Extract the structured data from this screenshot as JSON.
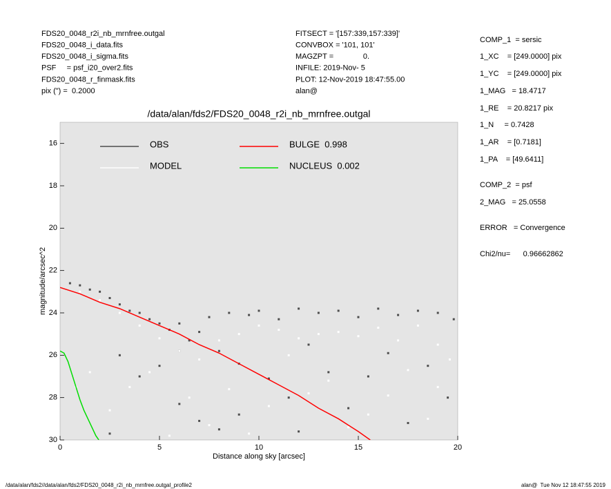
{
  "header": {
    "left": [
      "FDS20_0048_r2i_nb_mrnfree.outgal",
      "FDS20_0048_i_data.fits",
      "FDS20_0048_i_sigma.fits",
      "PSF     = psf_i20_over2.fits",
      "FDS20_0048_r_finmask.fits",
      "pix (\") =  0.2000"
    ],
    "middle": [
      "FITSECT = '[157:339,157:339]'",
      "CONVBOX = '101, 101'",
      "MAGZPT =              0.",
      "INFILE: 2019-Nov- 5",
      "PLOT: 12-Nov-2019 18:47:55.00",
      "alan@"
    ],
    "right": [
      "COMP_1  = sersic",
      "1_XC    = [249.0000] pix",
      "1_YC    = [249.0000] pix",
      "1_MAG   = 18.4717",
      "1_RE    = 20.8217 pix",
      "1_N     = 0.7428",
      "1_AR    = [0.7181]",
      "1_PA    = [49.6411]",
      "COMP_2  = psf",
      "2_MAG   = 25.0558",
      "ERROR   = Convergence",
      "Chi2/nu=      0.96662862"
    ]
  },
  "footer": {
    "left": "/data/alan/fds2//data/alan/fds2/FDS20_0048_r2i_nb_mrnfree.outgal_profile2",
    "right": "alan@  Tue Nov 12 18:47:55 2019"
  },
  "chart_data": {
    "type": "scatter",
    "title": "/data/alan/fds2/FDS20_0048_r2i_nb_mrnfree.outgal",
    "x_label": "Distance along sky [arcsec]",
    "y_label": "magnitude/arcsec^2",
    "xlim": [
      0,
      20
    ],
    "xticks": [
      0,
      5,
      10,
      15,
      20
    ],
    "ylim": [
      30,
      15
    ],
    "yticks": [
      16,
      18,
      20,
      22,
      24,
      26,
      28,
      30
    ],
    "series": [
      {
        "name": "OBS",
        "color": "#4d4d4d",
        "mode": "markers",
        "x": [
          0.5,
          1,
          1.5,
          2,
          2.5,
          3,
          3.5,
          4,
          4.5,
          5,
          5.5,
          6,
          6.5,
          7,
          7.5,
          8,
          8.5,
          9,
          9.5,
          10,
          10.5,
          11,
          11.5,
          12,
          12.5,
          13,
          13.5,
          14,
          14.5,
          15,
          15.5,
          16,
          16.5,
          17,
          17.5,
          18,
          18.5,
          19,
          19.5,
          19.8,
          4,
          5,
          6,
          7,
          3,
          8,
          2.5,
          9,
          6,
          12
        ],
        "values": [
          22.6,
          22.7,
          22.9,
          23.0,
          23.3,
          23.6,
          23.9,
          24.0,
          24.3,
          24.5,
          24.8,
          24.5,
          25.3,
          24.9,
          24.2,
          25.8,
          24.0,
          26.4,
          24.1,
          23.9,
          27.1,
          24.3,
          28.0,
          23.8,
          25.5,
          24.0,
          26.8,
          23.9,
          28.5,
          24.2,
          27.0,
          23.8,
          25.9,
          24.1,
          29.2,
          23.9,
          26.5,
          24.0,
          28.0,
          24.3,
          27.0,
          26.5,
          28.3,
          29.1,
          26.0,
          29.5,
          29.7,
          28.8,
          25.8,
          29.6
        ]
      },
      {
        "name": "MODEL",
        "color": "#ffffff",
        "mode": "markers",
        "x": [
          1,
          2,
          3,
          4,
          5,
          6,
          7,
          8,
          9,
          10,
          11,
          12,
          13,
          14,
          15,
          16,
          17,
          18,
          19,
          19.6,
          3.5,
          4.5,
          6.5,
          8.5,
          10.5,
          11.5,
          13.5,
          15.5,
          17.5,
          18.5,
          1.5,
          2.5,
          14.5,
          16.5,
          9.5,
          12.5,
          7.5,
          5.5,
          19,
          0.8
        ],
        "values": [
          23.0,
          23.4,
          24.0,
          24.6,
          25.2,
          25.8,
          26.2,
          25.3,
          25.0,
          24.6,
          24.8,
          25.2,
          25.0,
          24.9,
          25.1,
          24.7,
          25.3,
          24.6,
          25.5,
          26.2,
          27.5,
          26.8,
          28.0,
          27.6,
          28.4,
          26.0,
          27.2,
          28.8,
          26.7,
          29.0,
          26.8,
          28.6,
          29.4,
          27.9,
          29.7,
          27.8,
          29.3,
          29.8,
          27.5,
          27.5
        ]
      },
      {
        "name": "BULGE  0.998",
        "color": "#ff0000",
        "mode": "lines",
        "x": [
          0,
          1,
          2,
          3,
          4,
          5,
          6,
          7,
          8,
          9,
          10,
          11,
          12,
          13,
          14,
          15,
          15.6
        ],
        "values": [
          22.8,
          23.1,
          23.5,
          23.8,
          24.2,
          24.6,
          25.0,
          25.5,
          25.9,
          26.4,
          26.9,
          27.4,
          27.9,
          28.5,
          29.0,
          29.6,
          30.0
        ]
      },
      {
        "name": "NUCLEUS  0.002",
        "color": "#00dd00",
        "mode": "lines",
        "x": [
          0,
          0.2,
          0.4,
          0.6,
          0.8,
          1.0,
          1.2,
          1.4,
          1.6,
          1.8,
          1.95
        ],
        "values": [
          25.8,
          25.9,
          26.3,
          26.9,
          27.5,
          28.1,
          28.6,
          29.0,
          29.4,
          29.8,
          30.0
        ]
      }
    ]
  }
}
